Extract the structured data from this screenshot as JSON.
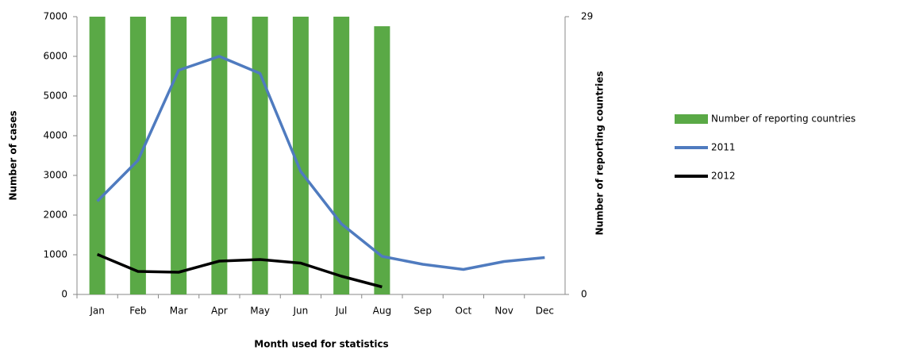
{
  "chart_data": {
    "type": "combo",
    "x_label": "Month used for statistics",
    "y_label": "Number of cases",
    "y2_label": "Number  of reporting countries",
    "categories": [
      "Jan",
      "Feb",
      "Mar",
      "Apr",
      "May",
      "Jun",
      "Jul",
      "Aug",
      "Sep",
      "Oct",
      "Nov",
      "Dec"
    ],
    "series": [
      {
        "name": "Number of reporting countries",
        "type": "bar",
        "axis": "y2",
        "color": "#5aa946",
        "values": [
          29,
          29,
          29,
          29,
          29,
          29,
          29,
          28,
          null,
          null,
          null,
          null
        ]
      },
      {
        "name": "2011",
        "type": "line",
        "color": "#4f7bbf",
        "values": [
          2350,
          3380,
          5650,
          6000,
          5570,
          3100,
          1780,
          960,
          760,
          630,
          830,
          930
        ]
      },
      {
        "name": "2012",
        "type": "line",
        "color": "#000000",
        "values": [
          1010,
          580,
          560,
          840,
          880,
          790,
          460,
          190,
          null,
          null,
          null,
          null
        ]
      }
    ],
    "ylim": [
      0,
      7000
    ],
    "yticks": [
      0,
      1000,
      2000,
      3000,
      4000,
      5000,
      6000,
      7000
    ],
    "y2lim": [
      0,
      29
    ],
    "y2ticks": [
      0,
      29
    ],
    "legend": "right"
  }
}
